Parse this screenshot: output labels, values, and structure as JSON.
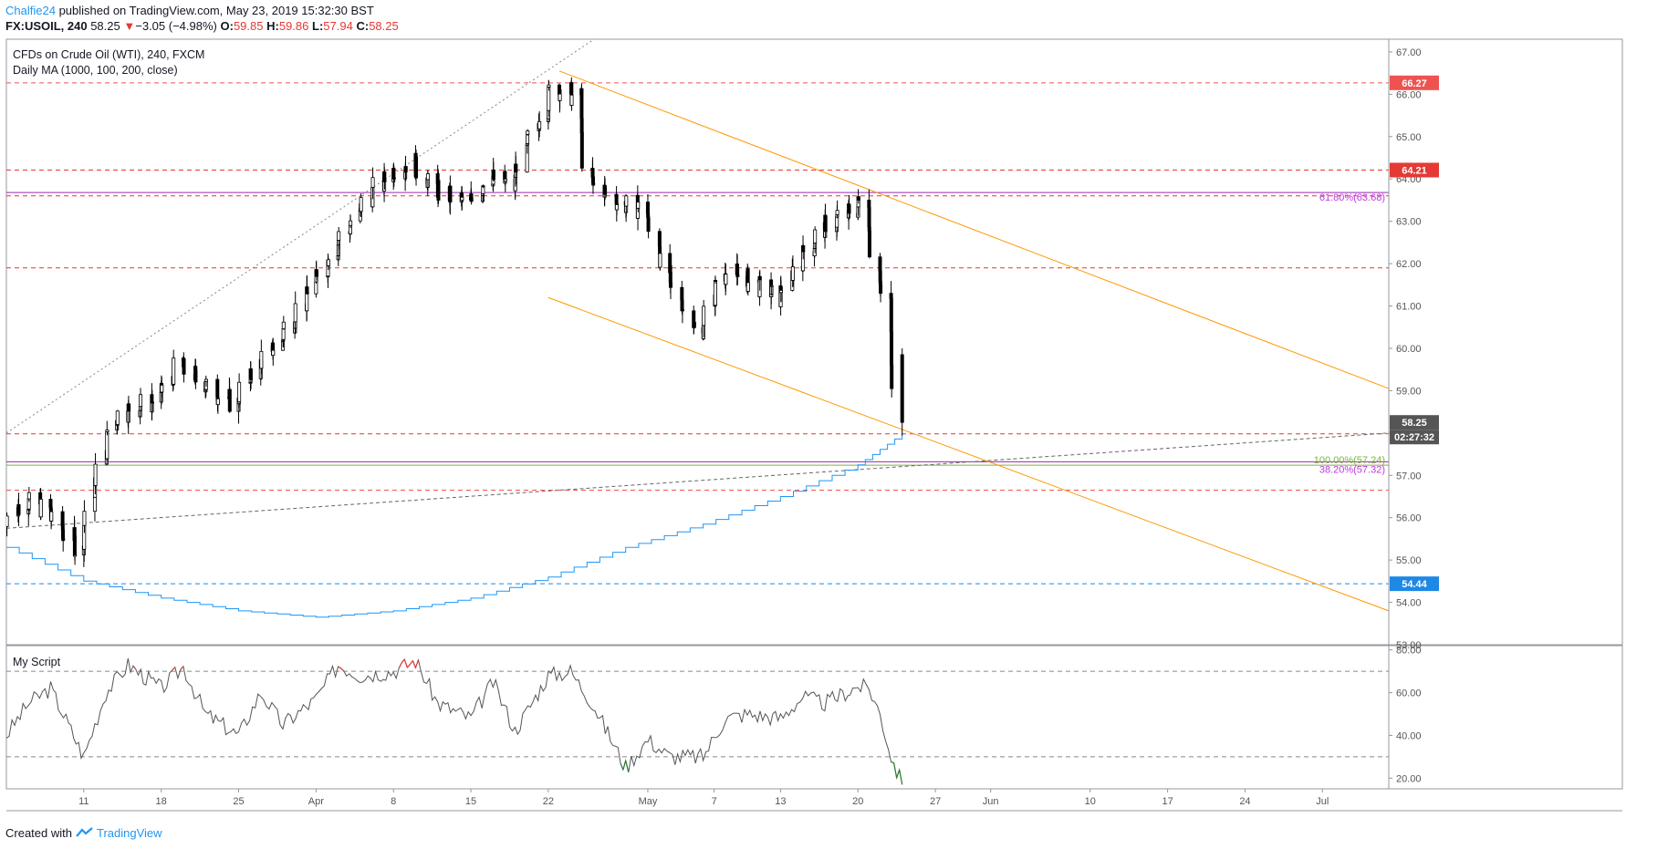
{
  "header": {
    "author": "Chalfie24",
    "published_text": "published on TradingView.com, May 23, 2019 15:32:30 BST",
    "symbol": "FX:USOIL, 240",
    "last": "58.25",
    "change_arrow": "▼",
    "change": "−3.05 (−4.98%)",
    "o_label": "O:",
    "o_value": "59.85",
    "h_label": "H:",
    "h_value": "59.86",
    "l_label": "L:",
    "l_value": "57.94",
    "c_label": "C:",
    "c_value": "58.25"
  },
  "main_pane": {
    "title": "CFDs on Crude Oil (WTI), 240, FXCM",
    "ma_label": "Daily MA (1000, 100, 200, close)",
    "price_ticks": [
      "67.00",
      "66.00",
      "65.00",
      "64.00",
      "63.00",
      "62.00",
      "61.00",
      "60.00",
      "59.00",
      "58.00",
      "57.00",
      "56.00",
      "55.00",
      "54.00",
      "53.00"
    ],
    "price_badges": [
      {
        "text": "66.27",
        "color": "#ef5350"
      },
      {
        "text": "64.21",
        "color": "#e53935"
      },
      {
        "text": "58.25",
        "color": "#555555"
      },
      {
        "text": "02:27:32",
        "color": "#555555"
      },
      {
        "text": "54.44",
        "color": "#1e88e5"
      }
    ],
    "fib_labels": [
      {
        "text": "61.80%(63.68)",
        "color": "#c039e0"
      },
      {
        "text": "100.00%(57.24)",
        "color": "#7cb342"
      },
      {
        "text": "38.20%(57.32)",
        "color": "#c039e0"
      }
    ]
  },
  "sub_pane": {
    "title": "My Script",
    "ticks": [
      "80.00",
      "60.00",
      "40.00",
      "20.00"
    ]
  },
  "x_axis": {
    "labels": [
      "11",
      "18",
      "25",
      "Apr",
      "8",
      "15",
      "22",
      "May",
      "7",
      "13",
      "20",
      "27",
      "Jun",
      "10",
      "17",
      "24",
      "Jul"
    ]
  },
  "footer": {
    "created_with": "Created with",
    "brand": "TradingView"
  },
  "chart_data": [
    {
      "type": "candlestick",
      "title": "CFDs on Crude Oil (WTI), 240, FXCM",
      "ylim": [
        53,
        67.3
      ],
      "x_start": "2019-03-04",
      "x_end": "2019-07-07",
      "horizontal_lines": [
        {
          "value": 66.27,
          "color": "#ef5350",
          "style": "dashed"
        },
        {
          "value": 64.21,
          "color": "#e53935",
          "style": "dashed"
        },
        {
          "value": 63.6,
          "color": "#e53935",
          "style": "dashed"
        },
        {
          "value": 61.9,
          "color": "#e53935",
          "style": "dashed"
        },
        {
          "value": 57.98,
          "color": "#e53935",
          "style": "dashed"
        },
        {
          "value": 56.65,
          "color": "#ef5350",
          "style": "dashed"
        },
        {
          "value": 54.44,
          "color": "#1e88e5",
          "style": "dashed"
        },
        {
          "value": 63.68,
          "color": "#9c27b0",
          "style": "solid"
        },
        {
          "value": 57.32,
          "color": "#9c27b0",
          "style": "solid"
        },
        {
          "value": 57.24,
          "color": "#7cb342",
          "style": "solid"
        }
      ],
      "trend_lines": [
        {
          "from": [
            "2019-04-23",
            66.55
          ],
          "to": [
            "2019-07-07",
            59.05
          ],
          "color": "#ff9800"
        },
        {
          "from": [
            "2019-04-22",
            61.2
          ],
          "to": [
            "2019-07-07",
            53.8
          ],
          "color": "#ff9800"
        },
        {
          "from": [
            "2019-03-04",
            58.0
          ],
          "to": [
            "2019-04-29",
            67.8
          ],
          "color": "#888888",
          "style": "dotted"
        },
        {
          "from": [
            "2019-03-04",
            55.75
          ],
          "to": [
            "2019-07-07",
            58.0
          ],
          "color": "#666666",
          "style": "dashed"
        }
      ],
      "series": [
        {
          "name": "Daily MA (1000, 100, 200, close)",
          "color": "#2196f3",
          "points": [
            [
              "2019-03-04",
              55.3
            ],
            [
              "2019-03-11",
              54.5
            ],
            [
              "2019-03-18",
              54.1
            ],
            [
              "2019-03-25",
              53.8
            ],
            [
              "2019-04-01",
              53.65
            ],
            [
              "2019-04-08",
              53.8
            ],
            [
              "2019-04-15",
              54.1
            ],
            [
              "2019-04-22",
              54.6
            ],
            [
              "2019-04-29",
              55.3
            ],
            [
              "2019-05-06",
              55.85
            ],
            [
              "2019-05-13",
              56.5
            ],
            [
              "2019-05-20",
              57.25
            ],
            [
              "2019-05-24",
              57.98
            ]
          ]
        },
        {
          "name": "USOIL candles (approx. closes)",
          "color": "#000000",
          "points": [
            [
              "2019-03-04",
              55.9
            ],
            [
              "2019-03-06",
              56.4
            ],
            [
              "2019-03-08",
              56.2
            ],
            [
              "2019-03-11",
              55.2
            ],
            [
              "2019-03-12",
              56.5
            ],
            [
              "2019-03-14",
              58.3
            ],
            [
              "2019-03-15",
              58.5
            ],
            [
              "2019-03-18",
              58.8
            ],
            [
              "2019-03-20",
              59.6
            ],
            [
              "2019-03-22",
              59.2
            ],
            [
              "2019-03-25",
              58.7
            ],
            [
              "2019-03-27",
              59.6
            ],
            [
              "2019-03-29",
              60.1
            ],
            [
              "2019-04-01",
              61.5
            ],
            [
              "2019-04-03",
              62.4
            ],
            [
              "2019-04-05",
              63.1
            ],
            [
              "2019-04-08",
              64.2
            ],
            [
              "2019-04-10",
              64.4
            ],
            [
              "2019-04-12",
              63.8
            ],
            [
              "2019-04-15",
              63.4
            ],
            [
              "2019-04-17",
              64.1
            ],
            [
              "2019-04-19",
              63.8
            ],
            [
              "2019-04-22",
              65.7
            ],
            [
              "2019-04-23",
              66.2
            ],
            [
              "2019-04-25",
              65.9
            ],
            [
              "2019-04-26",
              64.0
            ],
            [
              "2019-04-29",
              63.4
            ],
            [
              "2019-05-01",
              63.3
            ],
            [
              "2019-05-03",
              61.8
            ],
            [
              "2019-05-06",
              60.3
            ],
            [
              "2019-05-08",
              61.8
            ],
            [
              "2019-05-10",
              61.7
            ],
            [
              "2019-05-13",
              61.2
            ],
            [
              "2019-05-15",
              62.0
            ],
            [
              "2019-05-17",
              62.8
            ],
            [
              "2019-05-20",
              63.3
            ],
            [
              "2019-05-21",
              63.5
            ],
            [
              "2019-05-22",
              62.0
            ],
            [
              "2019-05-23",
              61.0
            ],
            [
              "2019-05-24",
              58.25
            ]
          ]
        }
      ]
    },
    {
      "type": "line",
      "title": "My Script",
      "ylim": [
        15,
        82
      ],
      "reference_lines": [
        70,
        30
      ],
      "series": [
        {
          "name": "My Script",
          "color": "#555555",
          "points": [
            [
              "2019-03-04",
              40
            ],
            [
              "2019-03-06",
              55
            ],
            [
              "2019-03-08",
              62
            ],
            [
              "2019-03-11",
              30
            ],
            [
              "2019-03-13",
              60
            ],
            [
              "2019-03-15",
              73
            ],
            [
              "2019-03-18",
              62
            ],
            [
              "2019-03-20",
              72
            ],
            [
              "2019-03-22",
              50
            ],
            [
              "2019-03-25",
              40
            ],
            [
              "2019-03-27",
              60
            ],
            [
              "2019-03-29",
              45
            ],
            [
              "2019-04-01",
              57
            ],
            [
              "2019-04-03",
              73
            ],
            [
              "2019-04-05",
              68
            ],
            [
              "2019-04-08",
              70
            ],
            [
              "2019-04-10",
              75
            ],
            [
              "2019-04-12",
              55
            ],
            [
              "2019-04-15",
              48
            ],
            [
              "2019-04-17",
              65
            ],
            [
              "2019-04-19",
              42
            ],
            [
              "2019-04-22",
              68
            ],
            [
              "2019-04-24",
              70
            ],
            [
              "2019-04-26",
              55
            ],
            [
              "2019-04-29",
              25
            ],
            [
              "2019-05-01",
              38
            ],
            [
              "2019-05-03",
              30
            ],
            [
              "2019-05-06",
              30
            ],
            [
              "2019-05-08",
              48
            ],
            [
              "2019-05-10",
              50
            ],
            [
              "2019-05-13",
              48
            ],
            [
              "2019-05-15",
              58
            ],
            [
              "2019-05-17",
              55
            ],
            [
              "2019-05-20",
              63
            ],
            [
              "2019-05-21",
              62
            ],
            [
              "2019-05-22",
              50
            ],
            [
              "2019-05-23",
              30
            ],
            [
              "2019-05-24",
              17
            ]
          ]
        }
      ]
    }
  ]
}
